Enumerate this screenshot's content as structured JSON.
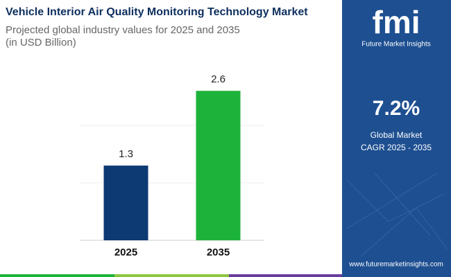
{
  "chart_data": {
    "type": "bar",
    "title": "Vehicle Interior Air Quality Monitoring Technology Market",
    "subtitle": [
      "Projected global industry values for 2025 and 2035",
      "(in USD Billion)"
    ],
    "categories": [
      "2025",
      "2035"
    ],
    "values": [
      1.3,
      2.6
    ],
    "colors": [
      "#0d3a73",
      "#1db33a"
    ],
    "ylim": [
      0,
      3
    ],
    "yticks": [
      0,
      1,
      2
    ],
    "grid": true
  },
  "sidebar": {
    "logo": "fmi",
    "brand": "Future Market Insights",
    "cagr": "7.2%",
    "cagr_label": [
      "Global Market",
      "CAGR 2025 - 2035"
    ],
    "website": "www.futuremarketinsights.com"
  }
}
